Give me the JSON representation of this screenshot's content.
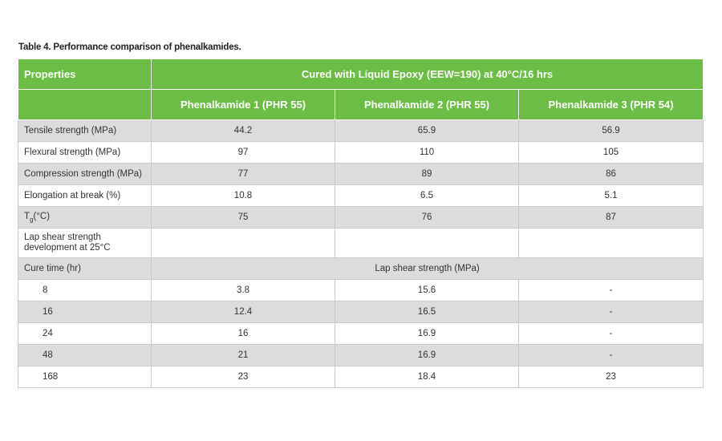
{
  "title": "Table 4. Performance comparison of phenalkamides.",
  "header": {
    "properties": "Properties",
    "condition": "Cured with Liquid Epoxy (EEW=190) at 40°C/16 hrs",
    "columns": [
      "Phenalkamide 1 (PHR 55)",
      "Phenalkamide 2 (PHR 55)",
      "Phenalkamide 3 (PHR 54)"
    ]
  },
  "rows": [
    {
      "label": "Tensile strength (MPa)",
      "values": [
        44.2,
        65.9,
        56.9
      ]
    },
    {
      "label": "Flexural strength (MPa)",
      "values": [
        97,
        110,
        105
      ]
    },
    {
      "label": "Compression strength (MPa)",
      "values": [
        77,
        89,
        86
      ]
    },
    {
      "label": "Elongation at break (%)",
      "values": [
        10.8,
        6.5,
        5.1
      ]
    }
  ],
  "tg_row": {
    "label": {
      "main": "T",
      "sub": "g",
      "rest": "(°C)"
    },
    "values": [
      75,
      76,
      87
    ]
  },
  "lap_shear": {
    "label": "Lap shear strength development at 25°C"
  },
  "cure": {
    "label": "Cure time (hr)",
    "span": "Lap shear strength (MPa)",
    "rows": [
      {
        "time": 8,
        "values": [
          3.8,
          15.6,
          "-"
        ]
      },
      {
        "time": 16,
        "values": [
          12.4,
          16.5,
          "-"
        ]
      },
      {
        "time": 24,
        "values": [
          16,
          16.9,
          "-"
        ]
      },
      {
        "time": 48,
        "values": [
          21,
          16.9,
          "-"
        ]
      },
      {
        "time": 168,
        "values": [
          23,
          18.4,
          23
        ]
      }
    ]
  }
}
